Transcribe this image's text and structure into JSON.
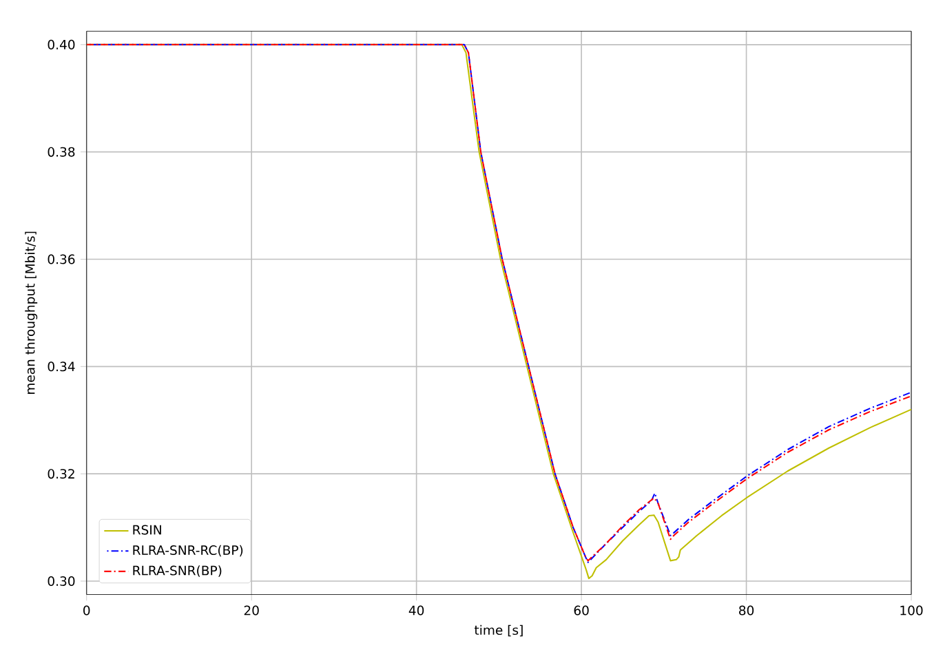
{
  "chart_data": {
    "type": "line",
    "xlabel": "time [s]",
    "ylabel": "mean throughput [Mbit/s]",
    "xlim": [
      0,
      100
    ],
    "ylim": [
      0.2975,
      0.4025
    ],
    "xticks": [
      0,
      20,
      40,
      60,
      80,
      100
    ],
    "yticks": [
      {
        "value": 0.3,
        "label": "0.30"
      },
      {
        "value": 0.32,
        "label": "0.32"
      },
      {
        "value": 0.34,
        "label": "0.34"
      },
      {
        "value": 0.36,
        "label": "0.36"
      },
      {
        "value": 0.38,
        "label": "0.38"
      },
      {
        "value": 0.4,
        "label": "0.40"
      }
    ],
    "grid": true,
    "legend": "bottom left",
    "series": [
      {
        "name": "RSIN",
        "color": "#bfbf00",
        "line_style": "solid",
        "x": [
          0,
          45.5,
          46,
          47.6,
          50.2,
          53.4,
          56.6,
          58.9,
          60.6,
          60.9,
          61.3,
          61.8,
          63,
          65,
          67,
          68.2,
          68.8,
          69.3,
          70.8,
          71.5,
          71.8,
          72,
          74,
          77,
          80,
          85,
          90,
          95,
          100
        ],
        "values": [
          0.4,
          0.4,
          0.3985,
          0.38,
          0.36,
          0.34,
          0.32,
          0.3095,
          0.302,
          0.3005,
          0.301,
          0.3025,
          0.304,
          0.3075,
          0.3105,
          0.3122,
          0.3123,
          0.311,
          0.3038,
          0.304,
          0.3045,
          0.3058,
          0.3085,
          0.3122,
          0.3155,
          0.3205,
          0.3248,
          0.3286,
          0.332
        ]
      },
      {
        "name": "RLRA-SNR-RC(BP)",
        "color": "#0000ff",
        "line_style": "dashdot",
        "x": [
          0,
          45.8,
          46.3,
          47.8,
          50.4,
          53.6,
          56.8,
          59,
          60.5,
          60.8,
          63,
          65,
          67,
          68.5,
          68.9,
          69.3,
          70.8,
          71.2,
          73,
          76,
          80,
          85,
          90,
          95,
          100
        ],
        "values": [
          0.4,
          0.4,
          0.3985,
          0.38,
          0.36,
          0.34,
          0.32,
          0.31,
          0.3045,
          0.3035,
          0.307,
          0.31,
          0.313,
          0.315,
          0.3164,
          0.3145,
          0.3085,
          0.309,
          0.3115,
          0.315,
          0.3195,
          0.3245,
          0.3288,
          0.3322,
          0.3352
        ]
      },
      {
        "name": "RLRA-SNR(BP)",
        "color": "#ff0000",
        "line_style": "dashdot",
        "x": [
          0,
          45.8,
          46.3,
          47.8,
          50.4,
          53.6,
          56.8,
          59,
          60.5,
          60.8,
          63,
          65,
          67,
          68.8,
          69.3,
          70.8,
          71.2,
          73,
          76,
          80,
          85,
          90,
          95,
          100
        ],
        "values": [
          0.4,
          0.4,
          0.3985,
          0.38,
          0.36,
          0.34,
          0.32,
          0.31,
          0.3045,
          0.3038,
          0.307,
          0.3103,
          0.3133,
          0.3155,
          0.3145,
          0.3078,
          0.3085,
          0.311,
          0.3145,
          0.319,
          0.324,
          0.3282,
          0.3316,
          0.3345
        ]
      }
    ]
  }
}
